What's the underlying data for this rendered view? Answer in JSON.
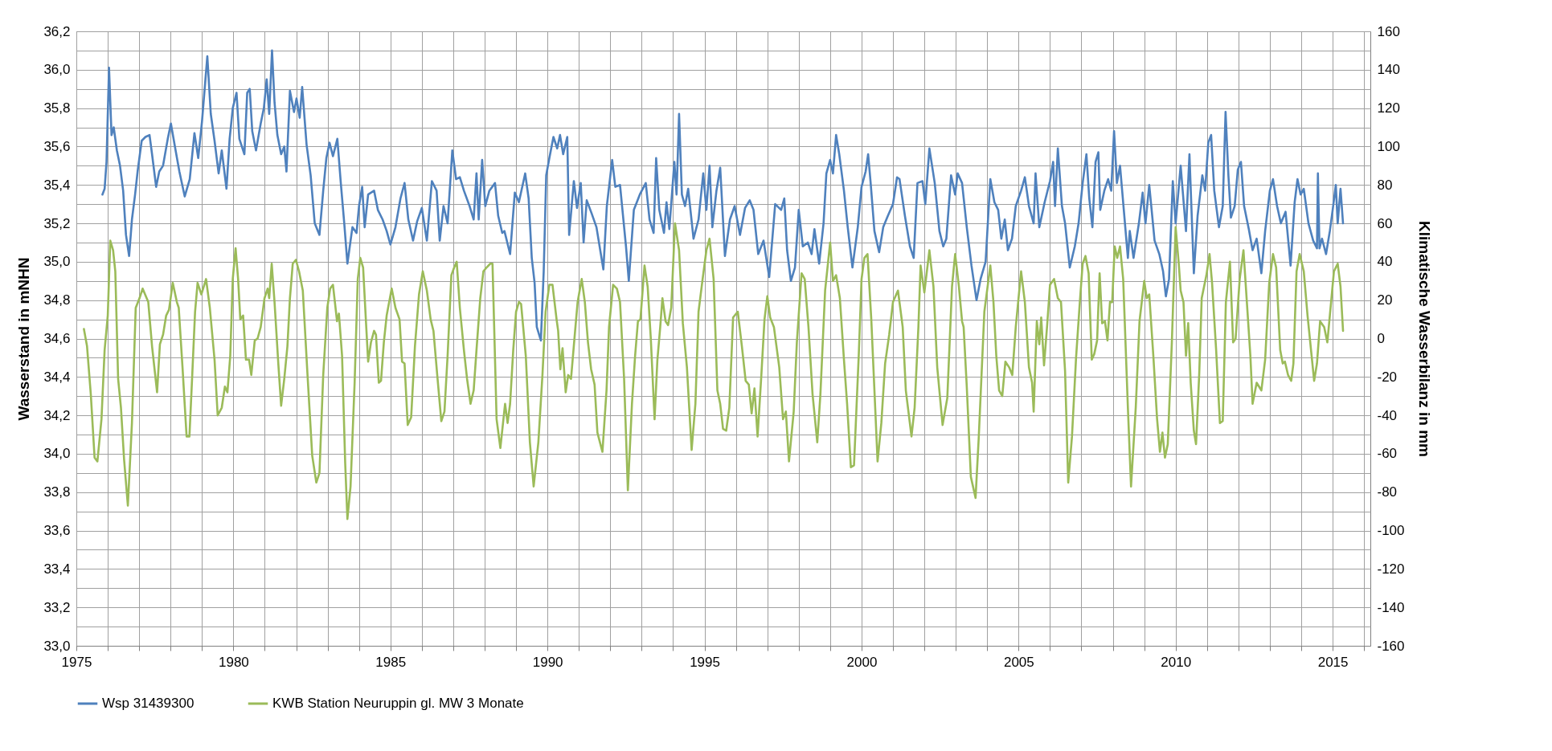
{
  "chart_data": {
    "type": "line",
    "ylabel": "Wasserstand in mNHN",
    "y2label": "Klimatische Wasserbilanz in mm",
    "grid": true,
    "legend": "bottom",
    "xlim": [
      1975,
      2016.2
    ],
    "xticks": [
      1975,
      {
        "value": 1976,
        "label": null
      },
      {
        "value": 1977,
        "label": null
      },
      {
        "value": 1978,
        "label": null
      },
      {
        "value": 1979,
        "label": null
      },
      1980,
      {
        "value": 1981,
        "label": null
      },
      {
        "value": 1982,
        "label": null
      },
      {
        "value": 1983,
        "label": null
      },
      {
        "value": 1984,
        "label": null
      },
      1985,
      {
        "value": 1986,
        "label": null
      },
      {
        "value": 1987,
        "label": null
      },
      {
        "value": 1988,
        "label": null
      },
      {
        "value": 1989,
        "label": null
      },
      1990,
      {
        "value": 1991,
        "label": null
      },
      {
        "value": 1992,
        "label": null
      },
      {
        "value": 1993,
        "label": null
      },
      {
        "value": 1994,
        "label": null
      },
      1995,
      {
        "value": 1996,
        "label": null
      },
      {
        "value": 1997,
        "label": null
      },
      {
        "value": 1998,
        "label": null
      },
      {
        "value": 1999,
        "label": null
      },
      2000,
      {
        "value": 2001,
        "label": null
      },
      {
        "value": 2002,
        "label": null
      },
      {
        "value": 2003,
        "label": null
      },
      {
        "value": 2004,
        "label": null
      },
      2005,
      {
        "value": 2006,
        "label": null
      },
      {
        "value": 2007,
        "label": null
      },
      {
        "value": 2008,
        "label": null
      },
      {
        "value": 2009,
        "label": null
      },
      2010,
      {
        "value": 2011,
        "label": null
      },
      {
        "value": 2012,
        "label": null
      },
      {
        "value": 2013,
        "label": null
      },
      {
        "value": 2014,
        "label": null
      },
      2015,
      {
        "value": 2016,
        "label": null
      }
    ],
    "ylim": [
      33,
      36.2
    ],
    "yticks": [
      {
        "value": 33,
        "label": "33,0"
      },
      {
        "value": 33.1,
        "label": null
      },
      {
        "value": 33.2,
        "label": "33,2"
      },
      {
        "value": 33.3,
        "label": null
      },
      {
        "value": 33.4,
        "label": "33,4"
      },
      {
        "value": 33.5,
        "label": null
      },
      {
        "value": 33.6,
        "label": "33,6"
      },
      {
        "value": 33.7,
        "label": null
      },
      {
        "value": 33.8,
        "label": "33,8"
      },
      {
        "value": 33.9,
        "label": null
      },
      {
        "value": 34,
        "label": "34,0"
      },
      {
        "value": 34.1,
        "label": null
      },
      {
        "value": 34.2,
        "label": "34,2"
      },
      {
        "value": 34.3,
        "label": null
      },
      {
        "value": 34.4,
        "label": "34,4"
      },
      {
        "value": 34.5,
        "label": null
      },
      {
        "value": 34.6,
        "label": "34,6"
      },
      {
        "value": 34.7,
        "label": null
      },
      {
        "value": 34.8,
        "label": "34,8"
      },
      {
        "value": 34.9,
        "label": null
      },
      {
        "value": 35,
        "label": "35,0"
      },
      {
        "value": 35.1,
        "label": null
      },
      {
        "value": 35.2,
        "label": "35,2"
      },
      {
        "value": 35.3,
        "label": null
      },
      {
        "value": 35.4,
        "label": "35,4"
      },
      {
        "value": 35.5,
        "label": null
      },
      {
        "value": 35.6,
        "label": "35,6"
      },
      {
        "value": 35.7,
        "label": null
      },
      {
        "value": 35.8,
        "label": "35,8"
      },
      {
        "value": 35.9,
        "label": null
      },
      {
        "value": 36,
        "label": "36,0"
      },
      {
        "value": 36.1,
        "label": null
      },
      {
        "value": 36.2,
        "label": "36,2"
      }
    ],
    "y2lim": [
      -160,
      160
    ],
    "y2ticks": [
      -160,
      -140,
      -120,
      -100,
      -80,
      -60,
      -40,
      -20,
      0,
      20,
      40,
      60,
      80,
      100,
      120,
      140,
      160
    ],
    "series": [
      {
        "name": "Wsp 31439300",
        "color": "#4f81bd",
        "x": [
          1975.83,
          1975.9,
          1975.96,
          1976.04,
          1976.12,
          1976.19,
          1976.29,
          1976.39,
          1976.49,
          1976.58,
          1976.68,
          1976.77,
          1976.87,
          1976.95,
          1977.08,
          1977.2,
          1977.33,
          1977.41,
          1977.54,
          1977.64,
          1977.76,
          1977.91,
          1978.01,
          1978.16,
          1978.28,
          1978.45,
          1978.61,
          1978.76,
          1978.88,
          1979.0,
          1979.17,
          1979.28,
          1979.4,
          1979.53,
          1979.63,
          1979.78,
          1979.88,
          1979.98,
          1980.1,
          1980.19,
          1980.35,
          1980.44,
          1980.52,
          1980.6,
          1980.72,
          1980.87,
          1980.97,
          1981.06,
          1981.14,
          1981.23,
          1981.31,
          1981.4,
          1981.52,
          1981.62,
          1981.69,
          1981.8,
          1981.93,
          1982.01,
          1982.11,
          1982.19,
          1982.33,
          1982.46,
          1982.59,
          1982.74,
          1982.86,
          1982.96,
          1983.06,
          1983.17,
          1983.31,
          1983.42,
          1983.53,
          1983.63,
          1983.79,
          1983.92,
          1984.0,
          1984.1,
          1984.18,
          1984.29,
          1984.48,
          1984.6,
          1984.75,
          1984.88,
          1985.0,
          1985.16,
          1985.32,
          1985.45,
          1985.57,
          1985.72,
          1985.85,
          1986.0,
          1986.16,
          1986.32,
          1986.47,
          1986.57,
          1986.69,
          1986.82,
          1986.97,
          1987.09,
          1987.21,
          1987.34,
          1987.52,
          1987.65,
          1987.74,
          1987.81,
          1987.92,
          1988.02,
          1988.15,
          1988.33,
          1988.43,
          1988.56,
          1988.63,
          1988.81,
          1988.96,
          1989.09,
          1989.29,
          1989.4,
          1989.5,
          1989.59,
          1989.66,
          1989.79,
          1989.88,
          1989.96,
          1990.06,
          1990.19,
          1990.31,
          1990.4,
          1990.5,
          1990.63,
          1990.69,
          1990.84,
          1990.94,
          1991.06,
          1991.15,
          1991.25,
          1991.41,
          1991.56,
          1991.78,
          1991.89,
          1992.06,
          1992.16,
          1992.31,
          1992.5,
          1992.59,
          1992.75,
          1992.94,
          1993.13,
          1993.25,
          1993.38,
          1993.46,
          1993.56,
          1993.71,
          1993.79,
          1993.88,
          1994.04,
          1994.11,
          1994.19,
          1994.28,
          1994.38,
          1994.48,
          1994.65,
          1994.81,
          1994.96,
          1995.06,
          1995.16,
          1995.25,
          1995.38,
          1995.5,
          1995.65,
          1995.81,
          1995.96,
          1996.13,
          1996.29,
          1996.44,
          1996.56,
          1996.71,
          1996.88,
          1997.06,
          1997.25,
          1997.44,
          1997.54,
          1997.63,
          1997.75,
          1997.88,
          1998.0,
          1998.13,
          1998.29,
          1998.41,
          1998.5,
          1998.65,
          1998.79,
          1998.88,
          1999.0,
          1999.09,
          1999.19,
          1999.29,
          1999.44,
          1999.56,
          1999.71,
          1999.88,
          2000.0,
          2000.13,
          2000.21,
          2000.29,
          2000.41,
          2000.56,
          2000.69,
          2000.84,
          2001.0,
          2001.13,
          2001.21,
          2001.38,
          2001.54,
          2001.66,
          2001.78,
          2001.94,
          2002.03,
          2002.16,
          2002.33,
          2002.48,
          2002.6,
          2002.7,
          2002.85,
          2002.98,
          2003.06,
          2003.2,
          2003.35,
          2003.5,
          2003.66,
          2003.79,
          2003.95,
          2004.1,
          2004.23,
          2004.35,
          2004.45,
          2004.56,
          2004.66,
          2004.79,
          2004.91,
          2005.08,
          2005.2,
          2005.33,
          2005.48,
          2005.54,
          2005.66,
          2005.83,
          2006.0,
          2006.1,
          2006.16,
          2006.25,
          2006.38,
          2006.48,
          2006.63,
          2006.79,
          2006.91,
          2007.04,
          2007.16,
          2007.25,
          2007.35,
          2007.45,
          2007.54,
          2007.6,
          2007.73,
          2007.85,
          2007.95,
          2008.04,
          2008.13,
          2008.23,
          2008.35,
          2008.48,
          2008.54,
          2008.66,
          2008.83,
          2008.95,
          2009.04,
          2009.16,
          2009.33,
          2009.48,
          2009.6,
          2009.69,
          2009.79,
          2009.91,
          2010.0,
          2010.16,
          2010.33,
          2010.44,
          2010.58,
          2010.7,
          2010.85,
          2010.94,
          2011.04,
          2011.13,
          2011.23,
          2011.38,
          2011.5,
          2011.59,
          2011.68,
          2011.76,
          2011.88,
          2011.98,
          2012.08,
          2012.18,
          2012.33,
          2012.45,
          2012.58,
          2012.73,
          2012.85,
          2013.0,
          2013.1,
          2013.23,
          2013.35,
          2013.5,
          2013.66,
          2013.79,
          2013.88,
          2013.98,
          2014.08,
          2014.23,
          2014.38,
          2014.5,
          2014.53,
          2014.58,
          2014.66,
          2014.79,
          2014.91,
          2015.0,
          2015.1,
          2015.16,
          2015.25,
          2015.33
        ],
        "values": [
          35.35,
          35.38,
          35.52,
          36.01,
          35.66,
          35.7,
          35.58,
          35.5,
          35.37,
          35.14,
          35.03,
          35.22,
          35.35,
          35.47,
          35.63,
          35.65,
          35.66,
          35.56,
          35.39,
          35.47,
          35.5,
          35.64,
          35.72,
          35.58,
          35.47,
          35.34,
          35.43,
          35.67,
          35.54,
          35.73,
          36.07,
          35.77,
          35.63,
          35.46,
          35.58,
          35.38,
          35.64,
          35.8,
          35.88,
          35.64,
          35.56,
          35.88,
          35.9,
          35.68,
          35.58,
          35.72,
          35.8,
          35.95,
          35.77,
          36.1,
          35.83,
          35.66,
          35.56,
          35.6,
          35.47,
          35.89,
          35.78,
          35.85,
          35.75,
          35.91,
          35.61,
          35.45,
          35.2,
          35.14,
          35.37,
          35.54,
          35.62,
          35.55,
          35.64,
          35.41,
          35.2,
          34.99,
          35.18,
          35.15,
          35.29,
          35.39,
          35.18,
          35.35,
          35.37,
          35.27,
          35.22,
          35.16,
          35.09,
          35.18,
          35.33,
          35.41,
          35.22,
          35.11,
          35.21,
          35.28,
          35.11,
          35.42,
          35.37,
          35.11,
          35.29,
          35.2,
          35.58,
          35.43,
          35.44,
          35.37,
          35.29,
          35.22,
          35.46,
          35.22,
          35.53,
          35.29,
          35.37,
          35.41,
          35.24,
          35.15,
          35.16,
          35.04,
          35.36,
          35.31,
          35.46,
          35.33,
          35.02,
          34.89,
          34.66,
          34.59,
          34.95,
          35.45,
          35.54,
          35.65,
          35.59,
          35.66,
          35.56,
          35.65,
          35.14,
          35.42,
          35.28,
          35.41,
          35.1,
          35.32,
          35.25,
          35.18,
          34.96,
          35.29,
          35.53,
          35.39,
          35.4,
          35.08,
          34.9,
          35.27,
          35.35,
          35.41,
          35.22,
          35.15,
          35.54,
          35.27,
          35.15,
          35.31,
          35.17,
          35.52,
          35.35,
          35.77,
          35.35,
          35.29,
          35.38,
          35.12,
          35.22,
          35.46,
          35.27,
          35.5,
          35.18,
          35.37,
          35.49,
          35.03,
          35.22,
          35.29,
          35.14,
          35.28,
          35.32,
          35.27,
          35.04,
          35.11,
          34.92,
          35.3,
          35.27,
          35.33,
          35.06,
          34.9,
          34.97,
          35.27,
          35.08,
          35.1,
          35.04,
          35.17,
          34.99,
          35.2,
          35.46,
          35.53,
          35.46,
          35.66,
          35.56,
          35.37,
          35.18,
          34.97,
          35.18,
          35.39,
          35.47,
          35.56,
          35.41,
          35.16,
          35.05,
          35.18,
          35.24,
          35.3,
          35.44,
          35.43,
          35.24,
          35.08,
          35.02,
          35.41,
          35.42,
          35.3,
          35.59,
          35.41,
          35.16,
          35.08,
          35.12,
          35.45,
          35.35,
          35.46,
          35.41,
          35.18,
          34.98,
          34.8,
          34.91,
          35.0,
          35.43,
          35.31,
          35.27,
          35.12,
          35.22,
          35.06,
          35.12,
          35.29,
          35.37,
          35.44,
          35.29,
          35.2,
          35.46,
          35.18,
          35.31,
          35.42,
          35.52,
          35.29,
          35.59,
          35.29,
          35.2,
          34.97,
          35.08,
          35.2,
          35.41,
          35.56,
          35.33,
          35.18,
          35.52,
          35.57,
          35.27,
          35.37,
          35.43,
          35.37,
          35.68,
          35.41,
          35.5,
          35.27,
          35.02,
          35.16,
          35.02,
          35.2,
          35.36,
          35.2,
          35.4,
          35.11,
          35.04,
          34.95,
          34.82,
          34.91,
          35.42,
          35.2,
          35.5,
          35.16,
          35.56,
          34.94,
          35.24,
          35.45,
          35.37,
          35.62,
          35.66,
          35.37,
          35.18,
          35.29,
          35.78,
          35.45,
          35.23,
          35.29,
          35.48,
          35.52,
          35.29,
          35.17,
          35.06,
          35.12,
          34.94,
          35.16,
          35.37,
          35.43,
          35.29,
          35.2,
          35.26,
          34.98,
          35.31,
          35.43,
          35.35,
          35.38,
          35.2,
          35.11,
          35.07,
          35.46,
          35.07,
          35.12,
          35.04,
          35.16,
          35.27,
          35.4,
          35.2,
          35.38,
          35.2
        ]
      },
      {
        "name": "KWB Station Neuruppin gl. MW 3 Monate",
        "color": "#9bbb59",
        "axis": "y2",
        "x": [
          1975.24,
          1975.34,
          1975.46,
          1975.58,
          1975.67,
          1975.8,
          1975.9,
          1976.0,
          1976.08,
          1976.17,
          1976.24,
          1976.33,
          1976.42,
          1976.52,
          1976.64,
          1976.77,
          1976.89,
          1977.01,
          1977.11,
          1977.29,
          1977.41,
          1977.57,
          1977.66,
          1977.76,
          1977.86,
          1977.95,
          1978.07,
          1978.2,
          1978.26,
          1978.38,
          1978.51,
          1978.6,
          1978.69,
          1978.78,
          1978.86,
          1978.98,
          1979.13,
          1979.25,
          1979.4,
          1979.5,
          1979.63,
          1979.73,
          1979.81,
          1979.9,
          1979.98,
          1980.07,
          1980.15,
          1980.22,
          1980.31,
          1980.4,
          1980.5,
          1980.57,
          1980.68,
          1980.77,
          1980.87,
          1980.99,
          1981.09,
          1981.14,
          1981.22,
          1981.31,
          1981.43,
          1981.52,
          1981.62,
          1981.72,
          1981.8,
          1981.89,
          1981.99,
          1982.09,
          1982.21,
          1982.36,
          1982.51,
          1982.64,
          1982.74,
          1982.86,
          1982.99,
          1983.08,
          1983.17,
          1983.3,
          1983.36,
          1983.46,
          1983.56,
          1983.63,
          1983.73,
          1983.86,
          1983.96,
          1984.04,
          1984.13,
          1984.23,
          1984.29,
          1984.38,
          1984.48,
          1984.54,
          1984.63,
          1984.7,
          1984.79,
          1984.88,
          1985.04,
          1985.16,
          1985.29,
          1985.37,
          1985.45,
          1985.55,
          1985.66,
          1985.78,
          1985.91,
          1986.03,
          1986.16,
          1986.28,
          1986.37,
          1986.49,
          1986.62,
          1986.72,
          1986.82,
          1986.94,
          1987.03,
          1987.11,
          1987.21,
          1987.34,
          1987.44,
          1987.55,
          1987.65,
          1987.74,
          1987.86,
          1987.96,
          1988.06,
          1988.18,
          1988.25,
          1988.38,
          1988.5,
          1988.65,
          1988.73,
          1988.81,
          1988.91,
          1989.0,
          1989.09,
          1989.16,
          1989.31,
          1989.44,
          1989.56,
          1989.71,
          1989.84,
          1989.94,
          1990.06,
          1990.16,
          1990.29,
          1990.34,
          1990.41,
          1990.48,
          1990.58,
          1990.66,
          1990.75,
          1990.88,
          1990.96,
          1991.09,
          1991.19,
          1991.29,
          1991.39,
          1991.5,
          1991.59,
          1991.75,
          1991.88,
          1991.96,
          1992.09,
          1992.21,
          1992.31,
          1992.44,
          1992.56,
          1992.69,
          1992.79,
          1992.88,
          1992.96,
          1993.09,
          1993.19,
          1993.29,
          1993.41,
          1993.5,
          1993.59,
          1993.66,
          1993.76,
          1993.84,
          1993.94,
          1994.06,
          1994.19,
          1994.31,
          1994.44,
          1994.59,
          1994.71,
          1994.81,
          1994.94,
          1995.06,
          1995.16,
          1995.29,
          1995.41,
          1995.5,
          1995.59,
          1995.69,
          1995.79,
          1995.91,
          1996.06,
          1996.19,
          1996.31,
          1996.41,
          1996.5,
          1996.59,
          1996.69,
          1996.81,
          1996.91,
          1997.0,
          1997.09,
          1997.21,
          1997.38,
          1997.5,
          1997.59,
          1997.69,
          1997.84,
          1997.94,
          1998.09,
          1998.19,
          1998.31,
          1998.44,
          1998.59,
          1998.69,
          1998.84,
          1999.0,
          1999.09,
          1999.19,
          1999.31,
          1999.44,
          1999.54,
          1999.66,
          1999.76,
          1999.91,
          2000.0,
          2000.09,
          2000.19,
          2000.31,
          2000.41,
          2000.51,
          2000.63,
          2000.75,
          2000.88,
          2001.0,
          2001.16,
          2001.31,
          2001.41,
          2001.59,
          2001.69,
          2001.81,
          2001.88,
          2002.0,
          2002.16,
          2002.29,
          2002.41,
          2002.58,
          2002.73,
          2002.88,
          2002.98,
          2003.1,
          2003.2,
          2003.25,
          2003.35,
          2003.48,
          2003.63,
          2003.73,
          2003.91,
          2004.1,
          2004.2,
          2004.29,
          2004.38,
          2004.48,
          2004.58,
          2004.7,
          2004.8,
          2004.91,
          2005.08,
          2005.2,
          2005.33,
          2005.43,
          2005.48,
          2005.58,
          2005.66,
          2005.72,
          2005.81,
          2005.91,
          2006.0,
          2006.13,
          2006.25,
          2006.35,
          2006.48,
          2006.58,
          2006.7,
          2006.83,
          2006.95,
          2007.04,
          2007.13,
          2007.23,
          2007.33,
          2007.41,
          2007.5,
          2007.58,
          2007.66,
          2007.75,
          2007.83,
          2007.91,
          2007.98,
          2008.06,
          2008.14,
          2008.23,
          2008.33,
          2008.48,
          2008.58,
          2008.73,
          2008.85,
          2009.0,
          2009.08,
          2009.16,
          2009.29,
          2009.41,
          2009.5,
          2009.58,
          2009.66,
          2009.75,
          2009.88,
          2010.0,
          2010.1,
          2010.16,
          2010.25,
          2010.33,
          2010.4,
          2010.48,
          2010.58,
          2010.65,
          2010.75,
          2010.83,
          2010.98,
          2011.08,
          2011.16,
          2011.29,
          2011.41,
          2011.5,
          2011.6,
          2011.73,
          2011.83,
          2011.91,
          2012.04,
          2012.16,
          2012.26,
          2012.38,
          2012.45,
          2012.58,
          2012.73,
          2012.85,
          2012.98,
          2013.1,
          2013.2,
          2013.33,
          2013.41,
          2013.48,
          2013.58,
          2013.68,
          2013.75,
          2013.85,
          2013.95,
          2014.08,
          2014.2,
          2014.33,
          2014.41,
          2014.5,
          2014.6,
          2014.73,
          2014.83,
          2014.95,
          2015.04,
          2015.16,
          2015.25,
          2015.33
        ],
        "values": [
          5,
          -4,
          -29,
          -62,
          -64,
          -42,
          -6,
          12,
          51,
          46,
          35,
          -21,
          -36,
          -63,
          -87,
          -44,
          16,
          21,
          26,
          19,
          -4,
          -28,
          -3,
          2,
          12,
          15,
          29,
          19,
          16,
          -15,
          -51,
          -51,
          -19,
          14,
          29,
          23,
          31,
          16,
          -11,
          -40,
          -36,
          -25,
          -28,
          -9,
          31,
          47,
          31,
          10,
          12,
          -11,
          -11,
          -19,
          -1,
          0,
          6,
          21,
          26,
          21,
          39,
          19,
          -13,
          -35,
          -21,
          -4,
          21,
          39,
          41,
          35,
          25,
          -19,
          -61,
          -75,
          -70,
          -19,
          16,
          26,
          28,
          9,
          13,
          -9,
          -65,
          -94,
          -77,
          -23,
          31,
          42,
          37,
          6,
          -12,
          -2,
          4,
          2,
          -23,
          -22,
          -2,
          12,
          26,
          16,
          10,
          -12,
          -13,
          -45,
          -41,
          -4,
          23,
          35,
          25,
          10,
          4,
          -19,
          -43,
          -38,
          -9,
          33,
          37,
          40,
          16,
          -6,
          -21,
          -34,
          -27,
          -6,
          21,
          35,
          37,
          39,
          39,
          -42,
          -57,
          -34,
          -44,
          -34,
          -6,
          14,
          19,
          18,
          -9,
          -54,
          -77,
          -54,
          -19,
          14,
          28,
          28,
          10,
          4,
          -16,
          -5,
          -28,
          -19,
          -21,
          4,
          19,
          31,
          19,
          -2,
          -16,
          -24,
          -49,
          -59,
          -27,
          6,
          28,
          26,
          19,
          -21,
          -79,
          -34,
          -9,
          9,
          10,
          38,
          27,
          0,
          -42,
          -11,
          6,
          21,
          9,
          7,
          16,
          60,
          46,
          8,
          -15,
          -58,
          -34,
          14,
          31,
          46,
          52,
          31,
          -27,
          -34,
          -47,
          -48,
          -36,
          11,
          14,
          -4,
          -22,
          -24,
          -39,
          -26,
          -51,
          -19,
          10,
          22,
          11,
          6,
          -15,
          -42,
          -38,
          -64,
          -38,
          -2,
          34,
          31,
          6,
          -29,
          -54,
          -29,
          25,
          50,
          30,
          33,
          21,
          -11,
          -34,
          -67,
          -66,
          -9,
          31,
          42,
          44,
          10,
          -27,
          -64,
          -44,
          -13,
          2,
          19,
          25,
          6,
          -27,
          -51,
          -36,
          6,
          38,
          24,
          46,
          27,
          -15,
          -45,
          -31,
          27,
          44,
          27,
          9,
          6,
          -25,
          -72,
          -83,
          -52,
          14,
          38,
          19,
          -9,
          -27,
          -30,
          -12,
          -15,
          -19,
          6,
          35,
          19,
          -15,
          -23,
          -38,
          9,
          -3,
          11,
          -14,
          7,
          28,
          31,
          21,
          19,
          -17,
          -75,
          -51,
          -10,
          19,
          39,
          43,
          34,
          -11,
          -8,
          -1,
          34,
          8,
          9,
          -1,
          19,
          19,
          48,
          42,
          48,
          31,
          -36,
          -77,
          -36,
          9,
          30,
          21,
          23,
          -9,
          -42,
          -59,
          -49,
          -62,
          -55,
          -2,
          58,
          39,
          25,
          19,
          -9,
          8,
          -23,
          -48,
          -55,
          -19,
          21,
          33,
          44,
          29,
          -6,
          -44,
          -43,
          19,
          40,
          -2,
          0,
          31,
          46,
          21,
          -9,
          -34,
          -23,
          -27,
          -11,
          29,
          44,
          37,
          -6,
          -13,
          -12,
          -19,
          -22,
          -13,
          35,
          44,
          35,
          12,
          -9,
          -22,
          -13,
          9,
          6,
          -2,
          19,
          35,
          39,
          27,
          4
        ]
      }
    ]
  }
}
